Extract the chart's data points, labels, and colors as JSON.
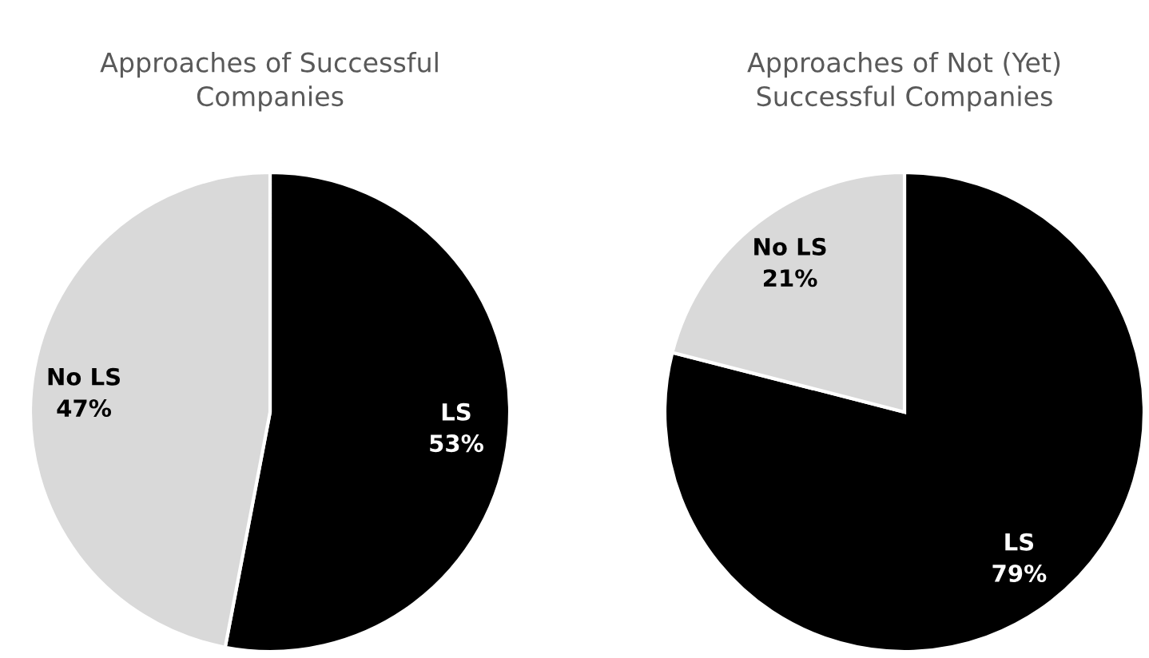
{
  "chart_data": [
    {
      "type": "pie",
      "title": "Approaches of Successful\nCompanies",
      "categories": [
        "LS",
        "No LS"
      ],
      "values": [
        53,
        47
      ],
      "colors": [
        "#000000",
        "#d9d9d9"
      ],
      "value_labels": [
        "53%",
        "47%"
      ]
    },
    {
      "type": "pie",
      "title": "Approaches of Not (Yet)\nSuccessful Companies",
      "categories": [
        "LS",
        "No LS"
      ],
      "values": [
        79,
        21
      ],
      "colors": [
        "#000000",
        "#d9d9d9"
      ],
      "value_labels": [
        "79%",
        "21%"
      ]
    }
  ]
}
